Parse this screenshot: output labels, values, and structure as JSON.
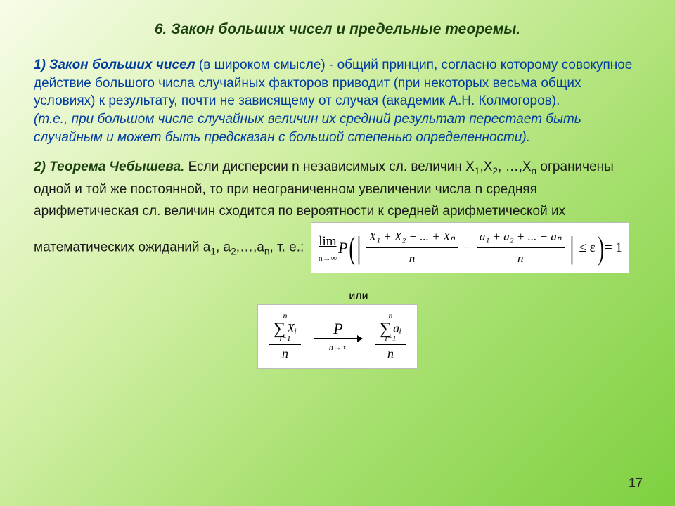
{
  "title": "6. Закон больших чисел и предельные теоремы.",
  "section1": {
    "lead": "1) Закон больших чисел",
    "body": " (в широком смысле) - общий принцип, согласно которому совокупное действие большого числа случайных факторов приводит (при некоторых весьма общих условиях) к результату, почти не зависящему от случая (академик А.Н. Колмогоров).",
    "italic": "(т.е., при большом числе случайных величин их средний результат перестает быть случайным и может быть предсказан с большой степенью определенности)."
  },
  "section2": {
    "lead": "2) Теорема Чебышева.",
    "body_pre": " Если дисперсии n независимых сл. величин X",
    "x1s": "1",
    "comma1": ",X",
    "x2s": "2",
    "cont1": ", …,X",
    "xns": "n",
    "cont2": " ограничены одной и той же постоянной, то при неограниченном увеличении числа n средняя арифметическая сл. величин сходится по вероятности к средней арифметической их математических ожиданий a",
    "a1s": "1",
    "comma2": ", a",
    "a2s": "2",
    "cont3": ",…,a",
    "ans": "n",
    "tail": ", т. е.:"
  },
  "formula1": {
    "lim": "lim",
    "ninf": "n→∞",
    "P": "P",
    "num1": "X₁ + X₂ + ... + Xₙ",
    "den": "n",
    "minus": "−",
    "num2": "a₁ + a₂ + ... + aₙ",
    "le_eps": "≤ ε",
    "eq1": "= 1"
  },
  "ili": "или",
  "formula2": {
    "sup": "n",
    "sigma": "∑",
    "sub": "i=1",
    "varX": "Xᵢ",
    "den": "n",
    "scriptP": "P",
    "ninf": "n→∞",
    "vara": "aᵢ"
  },
  "pagenum": "17",
  "colors": {
    "title": "#1a4010",
    "blue": "#003d9e",
    "green_dark": "#1a4010",
    "text": "#1a1a1a",
    "formula_bg": "#ffffff",
    "formula_border": "#bbbbbb"
  }
}
